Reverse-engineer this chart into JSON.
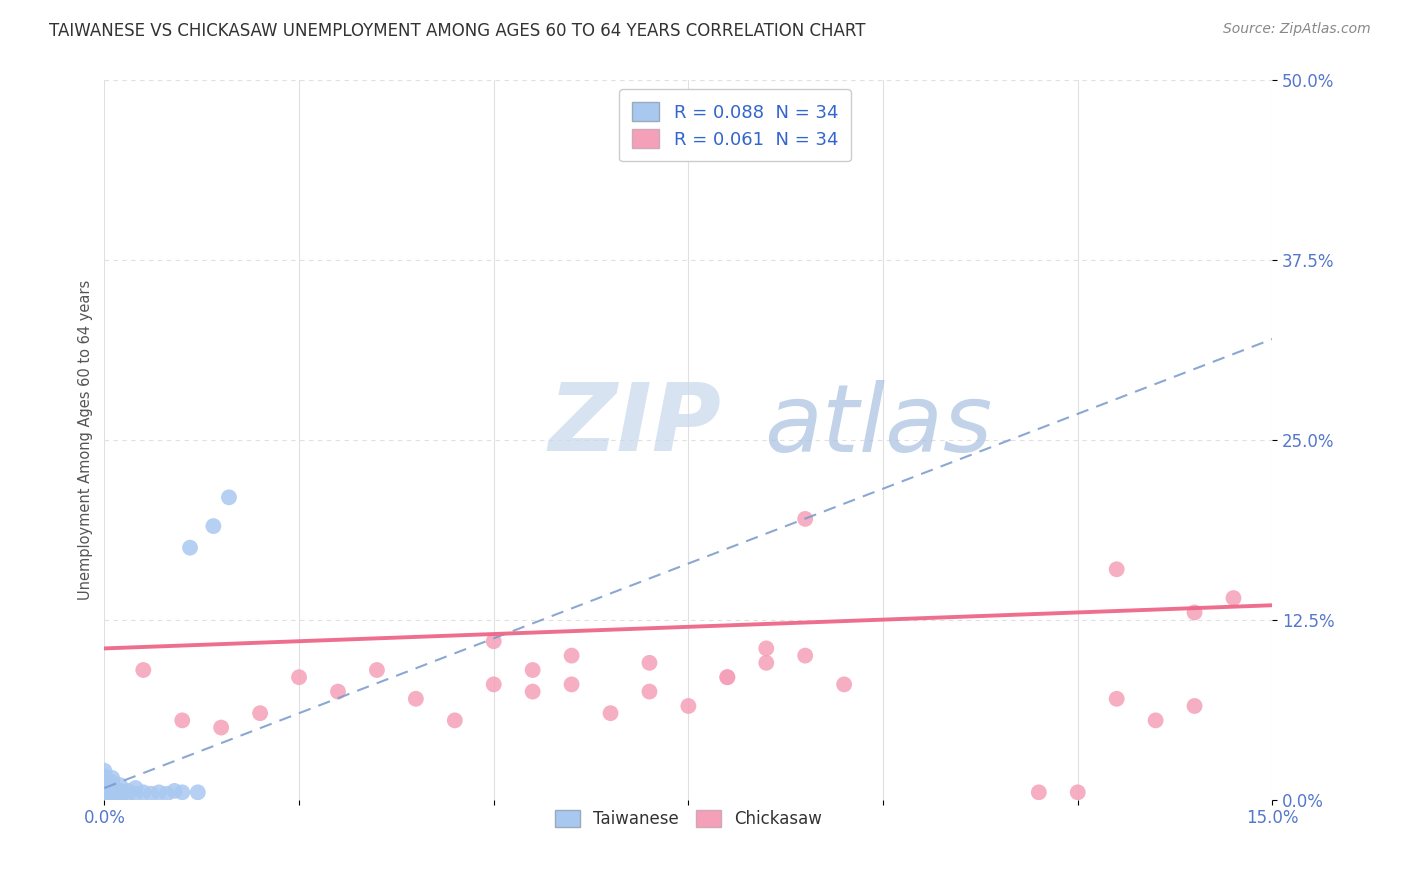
{
  "title": "TAIWANESE VS CHICKASAW UNEMPLOYMENT AMONG AGES 60 TO 64 YEARS CORRELATION CHART",
  "source": "Source: ZipAtlas.com",
  "ylabel": "Unemployment Among Ages 60 to 64 years",
  "legend_taiwanese": "R = 0.088  N = 34",
  "legend_chickasaw": "R = 0.061  N = 34",
  "taiwanese_color": "#a8c8f0",
  "chickasaw_color": "#f4a0b8",
  "taiwanese_line_color": "#7799cc",
  "chickasaw_line_color": "#ee6688",
  "legend_text_color": "#3366cc",
  "watermark_color_zip": "#c8d8ec",
  "watermark_color_atlas": "#a8c4e0",
  "background_color": "#ffffff",
  "title_color": "#333333",
  "grid_color": "#e0e0e0",
  "tick_color": "#5577cc",
  "tw_x": [
    0.0,
    0.0,
    0.0,
    0.0,
    0.0,
    0.0,
    0.0,
    0.0,
    0.0,
    0.0,
    0.001,
    0.001,
    0.001,
    0.001,
    0.001,
    0.001,
    0.002,
    0.002,
    0.002,
    0.002,
    0.003,
    0.003,
    0.004,
    0.004,
    0.005,
    0.006,
    0.007,
    0.008,
    0.009,
    0.01,
    0.011,
    0.012,
    0.014,
    0.016
  ],
  "tw_y": [
    0.0,
    0.0,
    0.0,
    0.0,
    0.005,
    0.008,
    0.01,
    0.013,
    0.016,
    0.02,
    0.0,
    0.003,
    0.006,
    0.009,
    0.012,
    0.015,
    0.0,
    0.003,
    0.006,
    0.01,
    0.003,
    0.006,
    0.004,
    0.008,
    0.005,
    0.004,
    0.005,
    0.004,
    0.006,
    0.005,
    0.175,
    0.005,
    0.19,
    0.21
  ],
  "ck_x": [
    0.005,
    0.01,
    0.015,
    0.02,
    0.025,
    0.03,
    0.035,
    0.04,
    0.045,
    0.05,
    0.055,
    0.055,
    0.06,
    0.065,
    0.07,
    0.075,
    0.08,
    0.085,
    0.09,
    0.095,
    0.05,
    0.06,
    0.07,
    0.08,
    0.085,
    0.09,
    0.12,
    0.125,
    0.13,
    0.13,
    0.135,
    0.14,
    0.14,
    0.145
  ],
  "ck_y": [
    0.09,
    0.055,
    0.05,
    0.06,
    0.085,
    0.075,
    0.09,
    0.07,
    0.055,
    0.08,
    0.09,
    0.075,
    0.1,
    0.06,
    0.075,
    0.065,
    0.085,
    0.095,
    0.1,
    0.08,
    0.11,
    0.08,
    0.095,
    0.085,
    0.105,
    0.195,
    0.005,
    0.005,
    0.16,
    0.07,
    0.055,
    0.065,
    0.13,
    0.14
  ],
  "xlim": [
    0.0,
    0.15
  ],
  "ylim": [
    0.0,
    0.5
  ],
  "x_ticks": [
    0.0,
    0.025,
    0.05,
    0.075,
    0.1,
    0.125,
    0.15
  ],
  "y_ticks": [
    0.0,
    0.125,
    0.25,
    0.375,
    0.5
  ],
  "x_tick_labels": [
    "0.0%",
    "",
    "",
    "",
    "",
    "",
    "15.0%"
  ],
  "y_tick_labels": [
    "0.0%",
    "12.5%",
    "25.0%",
    "37.5%",
    "50.0%"
  ]
}
